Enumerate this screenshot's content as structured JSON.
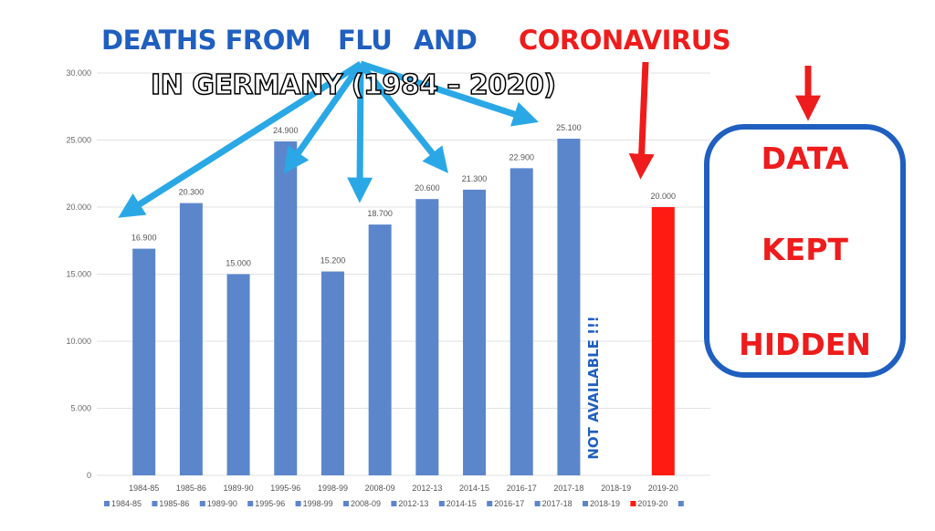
{
  "title": {
    "part1": "DEATHS FROM",
    "part2": "FLU",
    "part3": "AND",
    "part4": "CORONAVIRUS"
  },
  "subtitle": "IN GERMANY (1984 – 2020)",
  "hidden_box": {
    "line1": "DATA",
    "line2": "KEPT",
    "line3": "HIDDEN"
  },
  "not_available_note": "NOT AVAILABLE !!!",
  "colors": {
    "flu_bar": "#5b86cc",
    "corona_bar": "#ff1a12",
    "title_blue": "#1f5fc0",
    "title_red": "#ee1c1c",
    "arrow_blue": "#2aa8e6"
  },
  "chart_data": {
    "type": "bar",
    "categories": [
      "1984-85",
      "1985-86",
      "1989-90",
      "1995-96",
      "1998-99",
      "2008-09",
      "2012-13",
      "2014-15",
      "2016-17",
      "2017-18",
      "2018-19",
      "2019-20"
    ],
    "values": [
      16900,
      20300,
      15000,
      24900,
      15200,
      18700,
      20600,
      21300,
      22900,
      25100,
      null,
      20000
    ],
    "value_labels": [
      "16.900",
      "20.300",
      "15.000",
      "24.900",
      "15.200",
      "18.700",
      "20.600",
      "21.300",
      "22.900",
      "25.100",
      "",
      "20.000"
    ],
    "highlight_category": "2019-20",
    "ylim": [
      0,
      30000
    ],
    "yticks": [
      0,
      5000,
      10000,
      15000,
      20000,
      25000,
      30000
    ],
    "ytick_labels": [
      "0",
      "5.000",
      "10.000",
      "15.000",
      "20.000",
      "25.000",
      "30.000"
    ],
    "legend_labels": [
      "1984-85",
      "1985-86",
      "1989-90",
      "1995-96",
      "1998-99",
      "2008-09",
      "2012-13",
      "2014-15",
      "2016-17",
      "2017-18",
      "2018-19",
      "2019-20"
    ],
    "legend_position": "bottom",
    "grid": true
  }
}
